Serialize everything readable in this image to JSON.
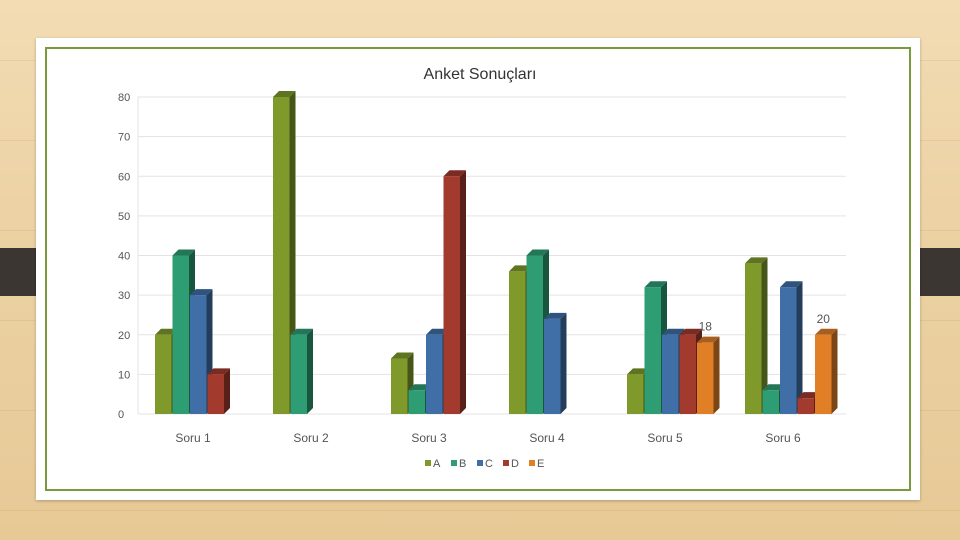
{
  "chart_data": {
    "type": "bar",
    "title": "Anket Sonuçları",
    "xlabel": "",
    "ylabel": "",
    "ylim": [
      0,
      80
    ],
    "yticks": [
      0,
      10,
      20,
      30,
      40,
      50,
      60,
      70,
      80
    ],
    "grid": true,
    "legend_position": "bottom",
    "categories": [
      "Soru 1",
      "Soru 2",
      "Soru 3",
      "Soru 4",
      "Soru 5",
      "Soru 6"
    ],
    "series": [
      {
        "name": "A",
        "color": "#7f9a2b",
        "values": [
          20,
          80,
          14,
          36,
          10,
          38
        ]
      },
      {
        "name": "B",
        "color": "#2e9d74",
        "values": [
          40,
          20,
          6,
          40,
          32,
          6
        ]
      },
      {
        "name": "C",
        "color": "#3f6fa6",
        "values": [
          30,
          null,
          20,
          24,
          20,
          32
        ]
      },
      {
        "name": "D",
        "color": "#a23a2e",
        "values": [
          10,
          null,
          60,
          null,
          20,
          4
        ]
      },
      {
        "name": "E",
        "color": "#e07f26",
        "values": [
          null,
          null,
          null,
          null,
          18,
          20
        ]
      }
    ],
    "data_labels": [
      {
        "series": "E",
        "category": "Soru 5",
        "text": "18"
      },
      {
        "series": "E",
        "category": "Soru 6",
        "text": "20"
      }
    ]
  }
}
